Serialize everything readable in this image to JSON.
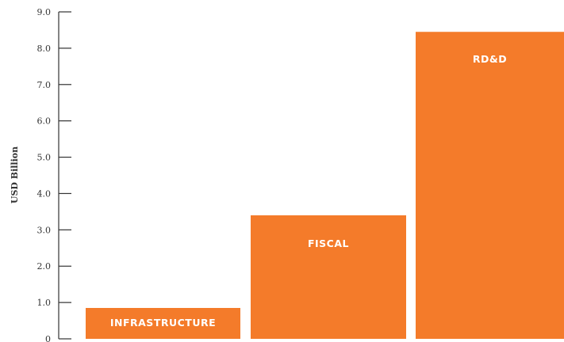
{
  "chart_data": {
    "type": "bar",
    "categories": [
      "INFRASTRUCTURE",
      "FISCAL",
      "RD&D"
    ],
    "values": [
      0.85,
      3.4,
      8.45
    ],
    "title": "",
    "xlabel": "",
    "ylabel": "USD Billion",
    "ylim": [
      0,
      9
    ],
    "yticks": [
      {
        "value": 0,
        "label": "0"
      },
      {
        "value": 1,
        "label": "1.0"
      },
      {
        "value": 2,
        "label": "2.0"
      },
      {
        "value": 3,
        "label": "3.0"
      },
      {
        "value": 4,
        "label": "4.0"
      },
      {
        "value": 5,
        "label": "5.0"
      },
      {
        "value": 6,
        "label": "6.0"
      },
      {
        "value": 7,
        "label": "7.0"
      },
      {
        "value": 8,
        "label": "8.0"
      },
      {
        "value": 9,
        "label": "9.0"
      }
    ],
    "bar_color": "#f47b2a",
    "axis_color": "#333333",
    "grid": false,
    "legend": "none"
  }
}
